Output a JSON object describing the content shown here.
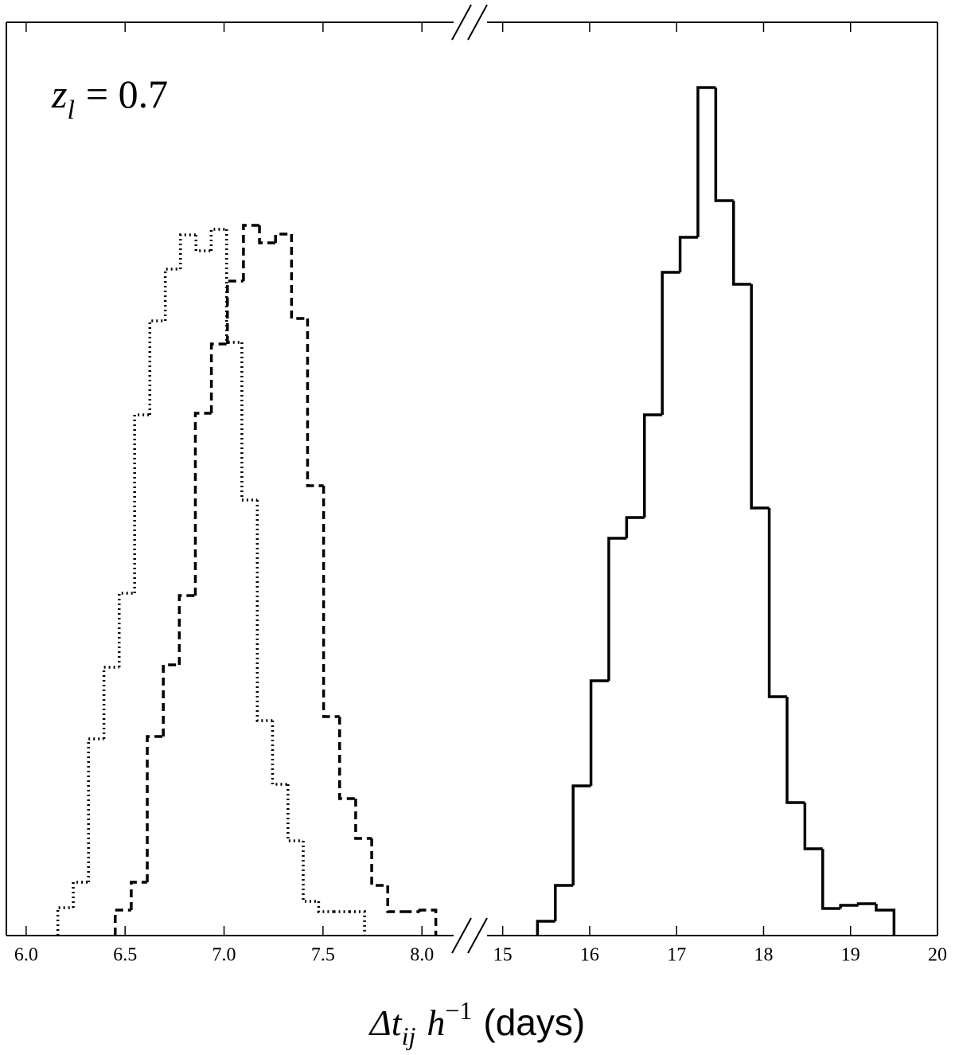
{
  "chart_data": [
    {
      "type": "histogram",
      "annotation": [
        "z",
        "l",
        "= 0.7"
      ],
      "xlabel": [
        "Δt",
        "ij",
        "h",
        "−1",
        "(days)"
      ],
      "xlim": [
        5.9,
        8.16
      ],
      "ylim": [
        0,
        1147
      ],
      "xticks": [
        {
          "value": 6,
          "label": "6.0"
        },
        6.5,
        {
          "value": 7,
          "label": "7.0"
        },
        7.5,
        {
          "value": 8,
          "label": "8.0"
        }
      ],
      "series": [
        {
          "color": "#000000",
          "linestyle": "dotted",
          "bins": [
            6.16,
            6.238,
            6.315,
            6.393,
            6.47,
            6.548,
            6.625,
            6.703,
            6.78,
            6.858,
            6.935,
            7.013,
            7.09,
            7.168,
            7.245,
            7.323,
            7.4,
            7.478,
            7.555,
            7.633,
            7.71
          ],
          "values": [
            35,
            67,
            247,
            337,
            430,
            654,
            772,
            837,
            880,
            860,
            887,
            745,
            547,
            270,
            190,
            119,
            43,
            30,
            30,
            30
          ]
        },
        {
          "color": "#000000",
          "linestyle": "dashed",
          "bins": [
            6.45,
            6.531,
            6.612,
            6.693,
            6.774,
            6.855,
            6.936,
            7.017,
            7.098,
            7.179,
            7.26,
            7.341,
            7.422,
            7.503,
            7.584,
            7.665,
            7.746,
            7.827,
            7.908,
            7.989,
            8.07
          ],
          "values": [
            32,
            67,
            250,
            340,
            427,
            656,
            743,
            822,
            892,
            870,
            881,
            775,
            565,
            275,
            172,
            122,
            63,
            30,
            30,
            32
          ]
        }
      ]
    },
    {
      "type": "histogram",
      "xlim": [
        14.82,
        20
      ],
      "ylim": [
        0,
        1147
      ],
      "xticks": [
        15,
        16,
        17,
        18,
        19,
        20
      ],
      "series": [
        {
          "color": "#000000",
          "linestyle": "solid",
          "bins": [
            15.4,
            15.605,
            15.81,
            16.015,
            16.22,
            16.425,
            16.63,
            16.835,
            17.04,
            17.245,
            17.45,
            17.655,
            17.86,
            18.065,
            18.27,
            18.475,
            18.68,
            18.885,
            19.09,
            19.295,
            19.5
          ],
          "values": [
            18,
            63,
            188,
            320,
            499,
            525,
            654,
            833,
            877,
            1065,
            923,
            818,
            537,
            300,
            167,
            109,
            34,
            38,
            40,
            32
          ]
        }
      ]
    }
  ]
}
